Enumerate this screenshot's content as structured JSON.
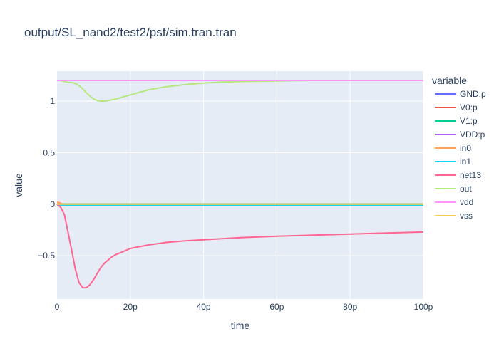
{
  "chart_data": {
    "type": "line",
    "title": "output/SL_nand2/test2/psf/sim.tran.tran",
    "xlabel": "time",
    "ylabel": "value",
    "xlim": [
      0,
      100
    ],
    "ylim": [
      -0.92,
      1.29
    ],
    "x_ticks": [
      {
        "value": 0,
        "label": "0"
      },
      {
        "value": 20,
        "label": "20p"
      },
      {
        "value": 40,
        "label": "40p"
      },
      {
        "value": 60,
        "label": "60p"
      },
      {
        "value": 80,
        "label": "80p"
      },
      {
        "value": 100,
        "label": "100p"
      }
    ],
    "y_ticks": [
      {
        "value": 1,
        "label": "1"
      },
      {
        "value": 0.5,
        "label": "0.5"
      },
      {
        "value": 0,
        "label": "0"
      },
      {
        "value": -0.5,
        "label": "−0.5"
      }
    ],
    "grid": true,
    "legend_title": "variable",
    "legend_position": "right",
    "series": [
      {
        "name": "GND:p",
        "color": "#636efa",
        "x": [
          0,
          100
        ],
        "y": [
          0,
          0
        ]
      },
      {
        "name": "V0:p",
        "color": "#ef553b",
        "x": [
          0,
          100
        ],
        "y": [
          0,
          0
        ]
      },
      {
        "name": "V1:p",
        "color": "#00cc96",
        "x": [
          0,
          100
        ],
        "y": [
          0,
          0
        ]
      },
      {
        "name": "VDD:p",
        "color": "#ab63fa",
        "x": [
          0,
          100
        ],
        "y": [
          1.2,
          1.2
        ]
      },
      {
        "name": "in0",
        "color": "#ffa15a",
        "x": [
          0,
          1,
          2,
          100
        ],
        "y": [
          0.02,
          0.01,
          -0.01,
          -0.01
        ]
      },
      {
        "name": "in1",
        "color": "#19d3f3",
        "x": [
          0,
          100
        ],
        "y": [
          -0.01,
          -0.01
        ]
      },
      {
        "name": "net13",
        "color": "#ff6692",
        "x": [
          0,
          1,
          2,
          3,
          4,
          5,
          6,
          7,
          8,
          9,
          10,
          11,
          12,
          13,
          14,
          15,
          16,
          18,
          20,
          22,
          25,
          30,
          35,
          40,
          45,
          50,
          60,
          70,
          80,
          90,
          100
        ],
        "y": [
          0,
          -0.03,
          -0.1,
          -0.27,
          -0.45,
          -0.63,
          -0.76,
          -0.81,
          -0.81,
          -0.78,
          -0.73,
          -0.67,
          -0.61,
          -0.57,
          -0.54,
          -0.51,
          -0.49,
          -0.46,
          -0.43,
          -0.415,
          -0.395,
          -0.37,
          -0.355,
          -0.345,
          -0.335,
          -0.325,
          -0.31,
          -0.3,
          -0.29,
          -0.28,
          -0.27
        ]
      },
      {
        "name": "out",
        "color": "#b6e880",
        "x": [
          0,
          1,
          2,
          3,
          4,
          5,
          6,
          7,
          8,
          9,
          10,
          11,
          12,
          13,
          14,
          16,
          18,
          20,
          25,
          30,
          35,
          40,
          45,
          50,
          60,
          70,
          80,
          100
        ],
        "y": [
          1.2,
          1.2,
          1.19,
          1.18,
          1.18,
          1.17,
          1.15,
          1.12,
          1.08,
          1.05,
          1.02,
          1.005,
          1.0,
          1.0,
          1.005,
          1.02,
          1.04,
          1.06,
          1.11,
          1.14,
          1.16,
          1.175,
          1.185,
          1.19,
          1.195,
          1.2,
          1.2,
          1.2
        ]
      },
      {
        "name": "vdd",
        "color": "#ff97ff",
        "x": [
          0,
          100
        ],
        "y": [
          1.2,
          1.2
        ]
      },
      {
        "name": "vss",
        "color": "#fecb52",
        "x": [
          0,
          100
        ],
        "y": [
          0,
          0
        ]
      }
    ]
  }
}
